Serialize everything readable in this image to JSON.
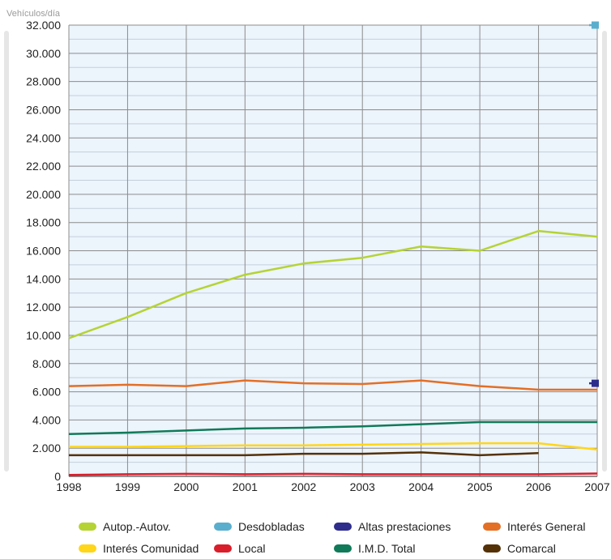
{
  "chart_data": {
    "type": "line",
    "ylabel": "Vehículos/día",
    "ylim": [
      0,
      32000
    ],
    "y_ticks": [
      "0",
      "2.000",
      "4.000",
      "6.000",
      "8.000",
      "10.000",
      "12.000",
      "14.000",
      "16.000",
      "18.000",
      "20.000",
      "22.000",
      "24.000",
      "26.000",
      "28.000",
      "30.000",
      "32.000"
    ],
    "x_ticks": [
      "1998",
      "1999",
      "2000",
      "2001",
      "2002",
      "2003",
      "2004",
      "2005",
      "2006",
      "2007"
    ],
    "grid": true,
    "legend_position": "bottom",
    "series": [
      {
        "name": "Autop.-Autov.",
        "color": "#b5d334",
        "values": [
          9800,
          11300,
          13000,
          14300,
          15100,
          15500,
          16300,
          16000,
          17400,
          17000
        ]
      },
      {
        "name": "Desdobladas",
        "color": "#5aaecd",
        "values": [
          null,
          null,
          null,
          null,
          null,
          null,
          null,
          null,
          null,
          32000
        ]
      },
      {
        "name": "Altas prestaciones",
        "color": "#2e2d8c",
        "values": [
          null,
          null,
          null,
          null,
          null,
          null,
          null,
          null,
          null,
          6600
        ]
      },
      {
        "name": "Interés General",
        "color": "#e36f26",
        "values": [
          6400,
          6500,
          6400,
          6800,
          6600,
          6550,
          6800,
          6400,
          6150,
          6150
        ]
      },
      {
        "name": "Interés Comunidad",
        "color": "#ffd61a",
        "values": [
          2100,
          2100,
          2150,
          2200,
          2200,
          2250,
          2300,
          2350,
          2350,
          1900
        ]
      },
      {
        "name": "Local",
        "color": "#d81f2b",
        "values": [
          100,
          150,
          180,
          150,
          180,
          150,
          150,
          150,
          150,
          200
        ]
      },
      {
        "name": "I.M.D. Total",
        "color": "#107a59",
        "values": [
          3000,
          3100,
          3250,
          3400,
          3450,
          3550,
          3700,
          3850,
          3850,
          3850
        ]
      },
      {
        "name": "Comarcal",
        "color": "#553108",
        "values": [
          1500,
          1500,
          1500,
          1500,
          1600,
          1600,
          1700,
          1500,
          1650,
          null
        ]
      }
    ]
  }
}
